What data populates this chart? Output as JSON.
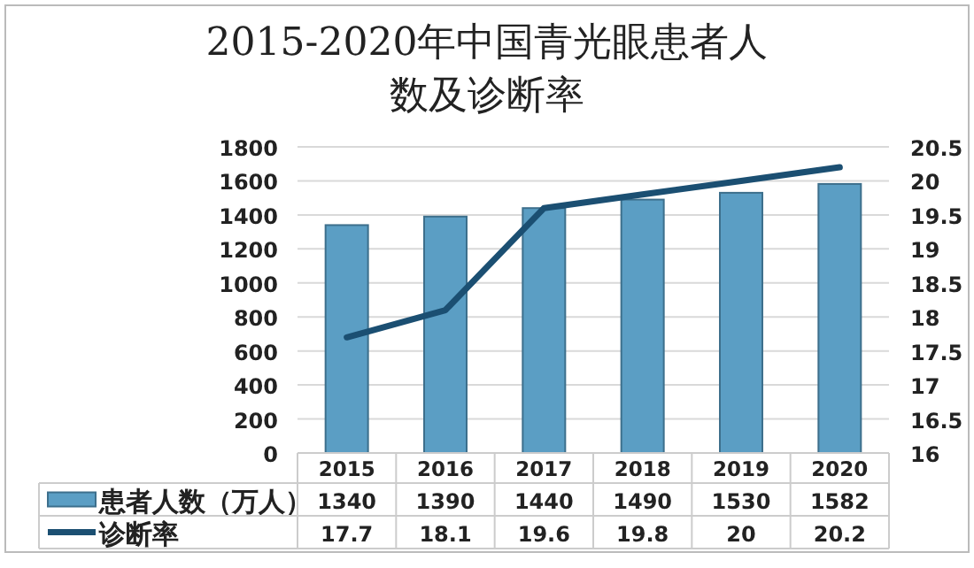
{
  "chart_data": {
    "type": "bar",
    "title": "2015-2020年中国青光眼患者人数及诊断率",
    "categories": [
      "2015",
      "2016",
      "2017",
      "2018",
      "2019",
      "2020"
    ],
    "series": [
      {
        "name": "患者人数（万人）",
        "color": "#5b9ec4",
        "values": [
          1340,
          1390,
          1440,
          1490,
          1530,
          1582
        ]
      },
      {
        "name": "诊断率",
        "type": "line",
        "axis": "y2",
        "color": "#1b4f72",
        "values": [
          17.7,
          18.1,
          19.6,
          19.8,
          20,
          20.2
        ]
      }
    ],
    "ylim": [
      0,
      1800
    ],
    "yticks": [
      0,
      200,
      400,
      600,
      800,
      1000,
      1200,
      1400,
      1600,
      1800
    ],
    "y2lim": [
      16,
      20.5
    ],
    "y2ticks": [
      16,
      16.5,
      17,
      17.5,
      18,
      18.5,
      19,
      19.5,
      20,
      20.5
    ],
    "grid": "y",
    "data_labels": true,
    "legend": "bottom"
  }
}
